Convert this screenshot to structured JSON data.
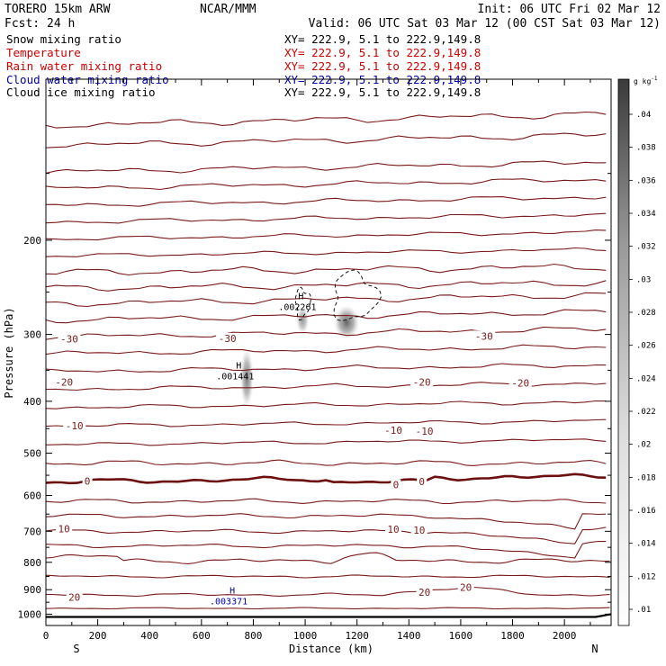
{
  "header": {
    "model": "TORERO  15km ARW",
    "center": "NCAR/MMM",
    "init": "Init: 06 UTC Fri 02 Mar 12",
    "fcst_label": "Fcst:",
    "fcst_value": "24 h",
    "valid": "Valid: 06 UTC Sat 03 Mar 12 (00 CST Sat 03 Mar 12)"
  },
  "fields": [
    {
      "name": "Snow mixing ratio",
      "xy": "XY= 222.9,  5.1 to 222.9,149.8",
      "color": "#000000"
    },
    {
      "name": "Temperature",
      "xy": "XY= 222.9,  5.1 to 222.9,149.8",
      "color": "#cc0000"
    },
    {
      "name": "Rain water mixing ratio",
      "xy": "XY= 222.9,  5.1 to 222.9,149.8",
      "color": "#cc0000"
    },
    {
      "name": "Cloud water mixing ratio",
      "xy": "XY= 222.9,  5.1 to 222.9,149.8",
      "color": "#0000aa"
    },
    {
      "name": "Cloud ice mixing ratio",
      "xy": "XY= 222.9,  5.1 to 222.9,149.8",
      "color": "#000000"
    }
  ],
  "colors": {
    "isotherm": "#7a1a1a",
    "zero_line": "#6b0f0f",
    "maximum_cloud_water": "#0000aa",
    "ground": "#000000"
  },
  "chart_data": {
    "type": "cross-section",
    "xlabel": "Distance (km)",
    "ylabel": "Pressure (hPa)",
    "xlim": [
      0,
      2180
    ],
    "ylim_pressure": [
      1050,
      100
    ],
    "x_ticks": [
      0,
      200,
      400,
      600,
      800,
      1000,
      1200,
      1400,
      1600,
      1800,
      2000
    ],
    "y_ticks": [
      200,
      300,
      400,
      500,
      600,
      700,
      800,
      900,
      1000
    ],
    "endpoint_left": "S",
    "endpoint_right": "N",
    "colorbar": {
      "unit": "g kg",
      "unit_exp": "-1",
      "ticks": [
        ".04",
        ".038",
        ".036",
        ".034",
        ".032",
        ".03",
        ".028",
        ".026",
        ".024",
        ".022",
        ".02",
        ".018",
        ".016",
        ".014",
        ".012",
        ".01"
      ]
    },
    "isotherm_labels": [
      {
        "text": "-30",
        "x": 90,
        "p": 306
      },
      {
        "text": "-30",
        "x": 700,
        "p": 305
      },
      {
        "text": "-30",
        "x": 1690,
        "p": 302
      },
      {
        "text": "-20",
        "x": 70,
        "p": 368
      },
      {
        "text": "-20",
        "x": 1450,
        "p": 368
      },
      {
        "text": "-20",
        "x": 1830,
        "p": 370
      },
      {
        "text": "-10",
        "x": 110,
        "p": 444
      },
      {
        "text": "-10",
        "x": 1340,
        "p": 453
      },
      {
        "text": "-10",
        "x": 1460,
        "p": 455
      },
      {
        "text": "0",
        "x": 160,
        "p": 564
      },
      {
        "text": "0",
        "x": 1350,
        "p": 573
      },
      {
        "text": "0",
        "x": 1450,
        "p": 565
      },
      {
        "text": "10",
        "x": 70,
        "p": 692
      },
      {
        "text": "10",
        "x": 1340,
        "p": 694
      },
      {
        "text": "10",
        "x": 1440,
        "p": 697
      },
      {
        "text": "20",
        "x": 110,
        "p": 930
      },
      {
        "text": "20",
        "x": 1460,
        "p": 910
      },
      {
        "text": "20",
        "x": 1620,
        "p": 891
      }
    ],
    "extrema": [
      {
        "symbol": "H",
        "value": ".002261",
        "x": 970,
        "p": 262,
        "color": "#000000"
      },
      {
        "symbol": "H",
        "value": ".001441",
        "x": 730,
        "p": 353,
        "color": "#000000"
      },
      {
        "symbol": "H",
        "value": ".003371",
        "x": 705,
        "p": 930,
        "color": "#0000aa"
      }
    ],
    "snow_blobs": [
      {
        "x": 1160,
        "p": 285,
        "dx": 50,
        "dp": 22,
        "strength": 0.85
      },
      {
        "x": 990,
        "p": 282,
        "dx": 25,
        "dp": 18,
        "strength": 0.6
      },
      {
        "x": 775,
        "p": 362,
        "dx": 26,
        "dp": 50,
        "strength": 0.75
      }
    ]
  }
}
